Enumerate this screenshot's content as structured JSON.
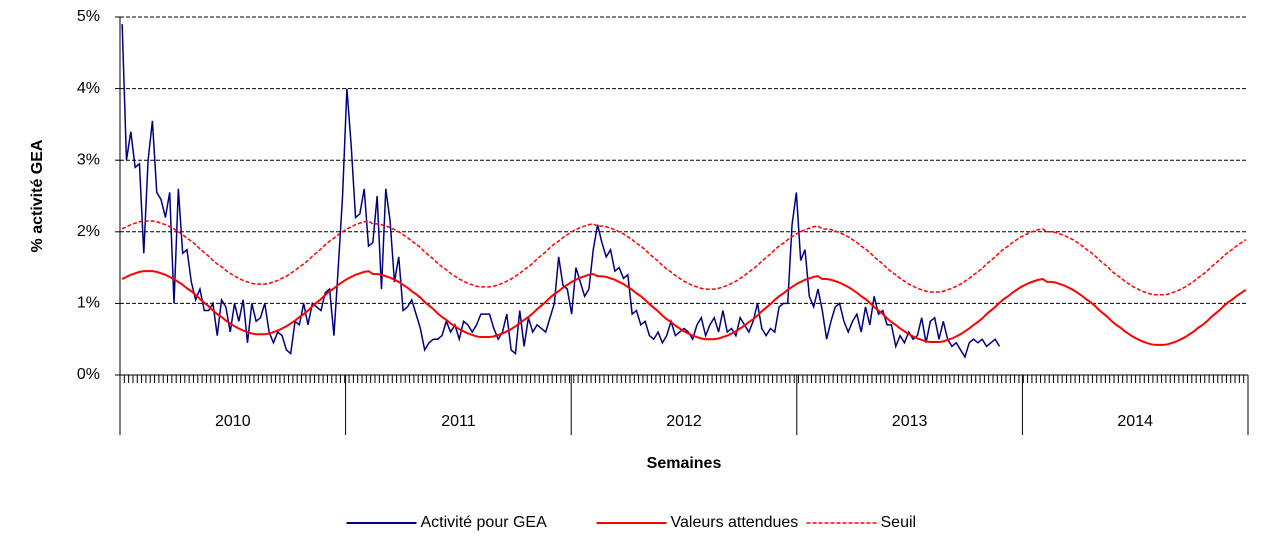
{
  "chart_data": {
    "type": "line",
    "y_label": "% activité GEA",
    "x_label": "Semaines",
    "years": [
      "2010",
      "2011",
      "2012",
      "2013",
      "2014"
    ],
    "ylim": [
      0,
      5
    ],
    "yticks": [
      {
        "value": 0,
        "label": "0%"
      },
      {
        "value": 1,
        "label": "1%"
      },
      {
        "value": 2,
        "label": "2%"
      },
      {
        "value": 3,
        "label": "3%"
      },
      {
        "value": 4,
        "label": "4%"
      },
      {
        "value": 5,
        "label": "5%"
      }
    ],
    "grid": true,
    "legend": "bottom",
    "series": [
      {
        "name": "Activité pour GEA",
        "color": "#000080",
        "style": "solid",
        "values": [
          4.9,
          3.0,
          3.4,
          2.9,
          2.95,
          1.7,
          3.0,
          3.55,
          2.55,
          2.45,
          2.2,
          2.55,
          1.0,
          2.6,
          1.7,
          1.75,
          1.3,
          1.05,
          1.2,
          0.9,
          0.9,
          1.0,
          0.55,
          1.05,
          0.95,
          0.6,
          1.0,
          0.75,
          1.05,
          0.45,
          1.0,
          0.75,
          0.8,
          1.0,
          0.6,
          0.45,
          0.6,
          0.55,
          0.35,
          0.3,
          0.75,
          0.7,
          1.0,
          0.7,
          1.0,
          0.95,
          0.9,
          1.15,
          1.2,
          0.55,
          1.5,
          2.5,
          4.0,
          3.2,
          2.2,
          2.25,
          2.6,
          1.8,
          1.85,
          2.5,
          1.2,
          2.6,
          2.15,
          1.3,
          1.65,
          0.9,
          0.95,
          1.05,
          0.85,
          0.65,
          0.35,
          0.45,
          0.5,
          0.5,
          0.55,
          0.75,
          0.6,
          0.7,
          0.5,
          0.75,
          0.7,
          0.6,
          0.7,
          0.85,
          0.85,
          0.85,
          0.65,
          0.5,
          0.6,
          0.85,
          0.35,
          0.3,
          0.9,
          0.4,
          0.8,
          0.6,
          0.7,
          0.65,
          0.6,
          0.8,
          1.0,
          1.65,
          1.25,
          1.2,
          0.85,
          1.5,
          1.3,
          1.1,
          1.2,
          1.75,
          2.1,
          1.85,
          1.65,
          1.75,
          1.45,
          1.5,
          1.35,
          1.4,
          0.85,
          0.9,
          0.7,
          0.75,
          0.55,
          0.5,
          0.6,
          0.45,
          0.55,
          0.75,
          0.55,
          0.6,
          0.65,
          0.6,
          0.5,
          0.7,
          0.8,
          0.55,
          0.7,
          0.8,
          0.6,
          0.9,
          0.6,
          0.65,
          0.55,
          0.8,
          0.7,
          0.6,
          0.75,
          1.0,
          0.65,
          0.55,
          0.65,
          0.6,
          0.95,
          1.0,
          1.0,
          2.1,
          2.55,
          1.6,
          1.75,
          1.1,
          0.95,
          1.2,
          0.9,
          0.5,
          0.75,
          0.95,
          1.0,
          0.75,
          0.6,
          0.75,
          0.85,
          0.6,
          0.95,
          0.7,
          1.1,
          0.85,
          0.9,
          0.7,
          0.7,
          0.4,
          0.55,
          0.45,
          0.6,
          0.5,
          0.55,
          0.8,
          0.45,
          0.75,
          0.8,
          0.5,
          0.75,
          0.5,
          0.4,
          0.45,
          0.35,
          0.25,
          0.45,
          0.5,
          0.45,
          0.5,
          0.4,
          0.45,
          0.5,
          0.4,
          null,
          null,
          null,
          null,
          null,
          null,
          null,
          null,
          null,
          null,
          null,
          null,
          null,
          null,
          null,
          null,
          null,
          null,
          null,
          null,
          null,
          null,
          null,
          null,
          null,
          null,
          null,
          null,
          null,
          null,
          null,
          null,
          null,
          null,
          null,
          null,
          null,
          null,
          null,
          null,
          null,
          null,
          null,
          null,
          null,
          null,
          null,
          null,
          null,
          null,
          null,
          null,
          null,
          null,
          null,
          null,
          null
        ]
      },
      {
        "name": "Valeurs attendues",
        "color": "#ff0000",
        "style": "solid",
        "values": [
          1.34,
          1.37,
          1.4,
          1.42,
          1.44,
          1.45,
          1.45,
          1.45,
          1.44,
          1.42,
          1.4,
          1.37,
          1.34,
          1.3,
          1.26,
          1.21,
          1.17,
          1.12,
          1.06,
          1.01,
          0.96,
          0.9,
          0.85,
          0.81,
          0.76,
          0.72,
          0.68,
          0.65,
          0.62,
          0.6,
          0.58,
          0.57,
          0.57,
          0.57,
          0.58,
          0.6,
          0.62,
          0.65,
          0.68,
          0.72,
          0.76,
          0.81,
          0.85,
          0.9,
          0.96,
          1.01,
          1.06,
          1.12,
          1.17,
          1.21,
          1.26,
          1.3,
          1.34,
          1.37,
          1.4,
          1.42,
          1.44,
          1.45,
          1.41,
          1.41,
          1.4,
          1.38,
          1.36,
          1.33,
          1.3,
          1.26,
          1.22,
          1.17,
          1.13,
          1.08,
          1.02,
          0.97,
          0.92,
          0.86,
          0.81,
          0.77,
          0.72,
          0.68,
          0.64,
          0.61,
          0.58,
          0.56,
          0.54,
          0.53,
          0.53,
          0.53,
          0.54,
          0.56,
          0.58,
          0.61,
          0.64,
          0.68,
          0.72,
          0.77,
          0.81,
          0.86,
          0.92,
          0.97,
          1.02,
          1.08,
          1.13,
          1.17,
          1.22,
          1.26,
          1.3,
          1.33,
          1.36,
          1.38,
          1.4,
          1.41,
          1.38,
          1.38,
          1.37,
          1.35,
          1.33,
          1.3,
          1.27,
          1.23,
          1.19,
          1.14,
          1.1,
          1.05,
          0.99,
          0.94,
          0.89,
          0.83,
          0.78,
          0.74,
          0.69,
          0.65,
          0.61,
          0.58,
          0.55,
          0.53,
          0.51,
          0.5,
          0.5,
          0.5,
          0.51,
          0.53,
          0.55,
          0.58,
          0.61,
          0.65,
          0.69,
          0.74,
          0.78,
          0.83,
          0.89,
          0.94,
          0.99,
          1.05,
          1.1,
          1.14,
          1.19,
          1.23,
          1.27,
          1.3,
          1.33,
          1.35,
          1.37,
          1.38,
          1.34,
          1.34,
          1.33,
          1.31,
          1.29,
          1.26,
          1.23,
          1.19,
          1.15,
          1.1,
          1.06,
          1.01,
          0.95,
          0.9,
          0.85,
          0.79,
          0.74,
          0.7,
          0.65,
          0.61,
          0.57,
          0.54,
          0.51,
          0.49,
          0.47,
          0.46,
          0.46,
          0.46,
          0.47,
          0.49,
          0.51,
          0.54,
          0.57,
          0.61,
          0.65,
          0.7,
          0.74,
          0.79,
          0.85,
          0.9,
          0.95,
          1.01,
          1.06,
          1.1,
          1.15,
          1.19,
          1.23,
          1.26,
          1.29,
          1.31,
          1.33,
          1.34,
          1.3,
          1.3,
          1.29,
          1.27,
          1.25,
          1.22,
          1.19,
          1.15,
          1.11,
          1.06,
          1.02,
          0.97,
          0.91,
          0.86,
          0.81,
          0.75,
          0.7,
          0.66,
          0.61,
          0.57,
          0.53,
          0.5,
          0.47,
          0.45,
          0.43,
          0.42,
          0.42,
          0.42,
          0.43,
          0.45,
          0.47,
          0.5,
          0.53,
          0.57,
          0.61,
          0.66,
          0.7,
          0.75,
          0.81,
          0.86,
          0.91,
          0.97,
          1.02,
          1.06,
          1.11,
          1.15,
          1.19
        ]
      },
      {
        "name": "Seuil",
        "color": "#ff0000",
        "style": "dashed",
        "values": [
          2.04,
          2.07,
          2.1,
          2.12,
          2.14,
          2.15,
          2.15,
          2.15,
          2.14,
          2.12,
          2.1,
          2.07,
          2.04,
          2.0,
          1.96,
          1.91,
          1.87,
          1.82,
          1.76,
          1.71,
          1.66,
          1.6,
          1.55,
          1.51,
          1.46,
          1.42,
          1.38,
          1.35,
          1.32,
          1.3,
          1.28,
          1.27,
          1.27,
          1.27,
          1.28,
          1.3,
          1.32,
          1.35,
          1.38,
          1.42,
          1.46,
          1.51,
          1.55,
          1.6,
          1.66,
          1.71,
          1.76,
          1.82,
          1.87,
          1.91,
          1.96,
          2.0,
          2.04,
          2.07,
          2.1,
          2.12,
          2.14,
          2.15,
          2.11,
          2.11,
          2.1,
          2.08,
          2.06,
          2.03,
          2.0,
          1.96,
          1.92,
          1.87,
          1.83,
          1.78,
          1.72,
          1.67,
          1.62,
          1.56,
          1.51,
          1.47,
          1.42,
          1.38,
          1.34,
          1.31,
          1.28,
          1.26,
          1.24,
          1.23,
          1.23,
          1.23,
          1.24,
          1.26,
          1.28,
          1.31,
          1.34,
          1.38,
          1.42,
          1.47,
          1.51,
          1.56,
          1.62,
          1.67,
          1.72,
          1.78,
          1.83,
          1.87,
          1.92,
          1.96,
          2.0,
          2.03,
          2.06,
          2.08,
          2.1,
          2.11,
          2.08,
          2.08,
          2.07,
          2.05,
          2.03,
          2.0,
          1.97,
          1.93,
          1.89,
          1.84,
          1.8,
          1.75,
          1.69,
          1.64,
          1.59,
          1.53,
          1.48,
          1.44,
          1.39,
          1.35,
          1.31,
          1.28,
          1.25,
          1.23,
          1.21,
          1.2,
          1.2,
          1.2,
          1.21,
          1.23,
          1.25,
          1.28,
          1.31,
          1.35,
          1.39,
          1.44,
          1.48,
          1.53,
          1.59,
          1.64,
          1.69,
          1.75,
          1.8,
          1.84,
          1.89,
          1.93,
          1.97,
          2.0,
          2.03,
          2.05,
          2.07,
          2.08,
          2.04,
          2.04,
          2.03,
          2.01,
          1.99,
          1.96,
          1.93,
          1.89,
          1.85,
          1.8,
          1.76,
          1.71,
          1.65,
          1.6,
          1.55,
          1.49,
          1.44,
          1.4,
          1.35,
          1.31,
          1.27,
          1.24,
          1.21,
          1.19,
          1.17,
          1.16,
          1.16,
          1.16,
          1.17,
          1.19,
          1.21,
          1.24,
          1.27,
          1.31,
          1.35,
          1.4,
          1.44,
          1.49,
          1.55,
          1.6,
          1.65,
          1.71,
          1.76,
          1.8,
          1.85,
          1.89,
          1.93,
          1.96,
          1.99,
          2.01,
          2.03,
          2.04,
          2.0,
          2.0,
          1.99,
          1.97,
          1.95,
          1.92,
          1.89,
          1.85,
          1.81,
          1.76,
          1.72,
          1.67,
          1.61,
          1.56,
          1.51,
          1.45,
          1.4,
          1.36,
          1.31,
          1.27,
          1.23,
          1.2,
          1.17,
          1.15,
          1.13,
          1.12,
          1.12,
          1.12,
          1.13,
          1.15,
          1.17,
          1.2,
          1.23,
          1.27,
          1.31,
          1.36,
          1.4,
          1.45,
          1.51,
          1.56,
          1.61,
          1.67,
          1.72,
          1.76,
          1.81,
          1.85,
          1.89
        ]
      }
    ]
  }
}
